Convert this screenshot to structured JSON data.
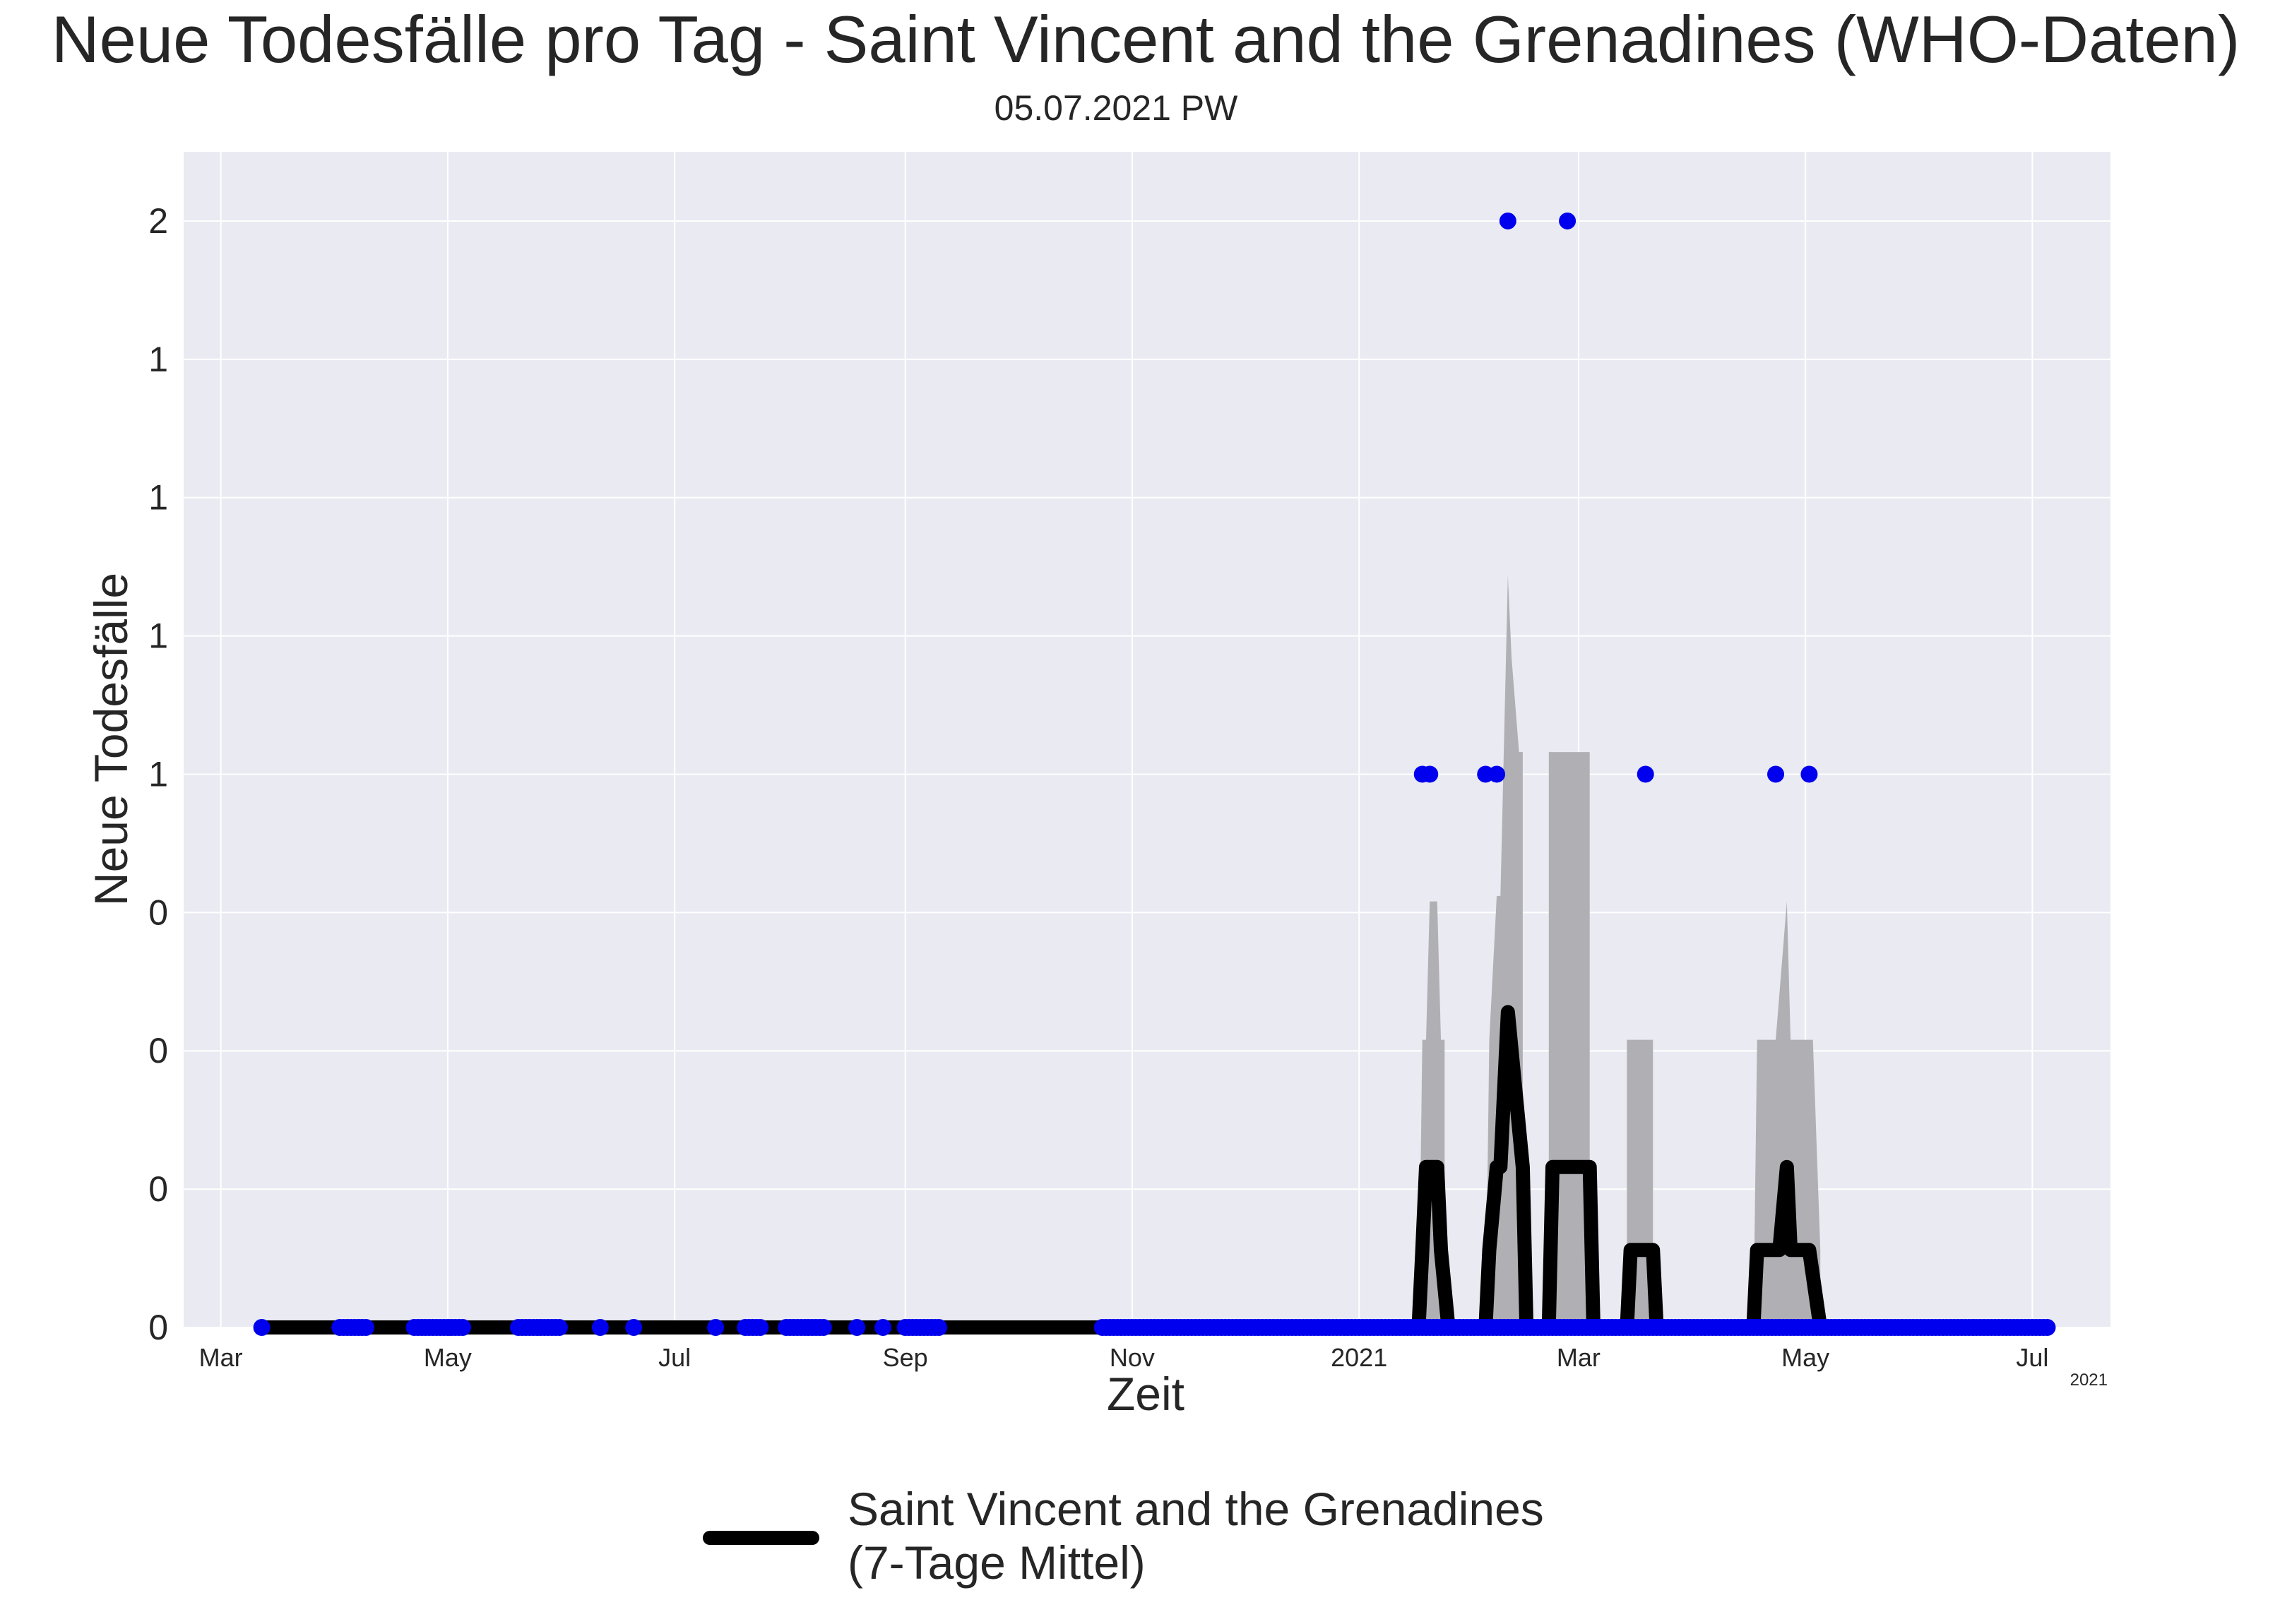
{
  "chart_data": {
    "type": "line",
    "title": "Neue Todesfälle pro Tag - Saint Vincent and the Grenadines (WHO-Daten)",
    "subtitle": "05.07.2021 PW",
    "xlabel": "Zeit",
    "ylabel": "Neue Todesfälle",
    "x_tick_labels": [
      "Mar",
      "May",
      "Jul",
      "Sep",
      "Nov",
      "2021",
      "Mar",
      "May",
      "Jul"
    ],
    "x_tick_dates": [
      "2020-03-01",
      "2020-05-01",
      "2020-07-01",
      "2020-09-01",
      "2020-11-01",
      "2021-01-01",
      "2021-03-01",
      "2021-05-01",
      "2021-07-01"
    ],
    "x_offset_label": "2021",
    "y_tick_labels": [
      "0",
      "0",
      "0",
      "0",
      "1",
      "1",
      "1",
      "1",
      "2"
    ],
    "y_tick_values": [
      0.0,
      0.25,
      0.5,
      0.75,
      1.0,
      1.25,
      1.5,
      1.75,
      2.0
    ],
    "xlim": [
      "2020-02-20",
      "2021-07-22"
    ],
    "ylim": [
      0,
      2.125
    ],
    "grid": true,
    "legend_position": "bottom-center",
    "colors": {
      "background": "#eaeaf2",
      "grid": "#ffffff",
      "points": "#0000ee",
      "line": "#000000",
      "band": "#b0b0b4"
    },
    "series": [
      {
        "name": "Saint Vincent and the Grenadines\n(7-Tage Mittel)",
        "kind": "line",
        "style": "thick black line",
        "points": [
          {
            "x": "2020-03-12",
            "y": 0
          },
          {
            "x": "2021-01-17",
            "y": 0
          },
          {
            "x": "2021-01-18",
            "y": 0.14
          },
          {
            "x": "2021-01-19",
            "y": 0.29
          },
          {
            "x": "2021-01-22",
            "y": 0.29
          },
          {
            "x": "2021-01-23",
            "y": 0.14
          },
          {
            "x": "2021-01-25",
            "y": 0
          },
          {
            "x": "2021-02-04",
            "y": 0
          },
          {
            "x": "2021-02-05",
            "y": 0.14
          },
          {
            "x": "2021-02-07",
            "y": 0.29
          },
          {
            "x": "2021-02-08",
            "y": 0.29
          },
          {
            "x": "2021-02-10",
            "y": 0.57
          },
          {
            "x": "2021-02-12",
            "y": 0.43
          },
          {
            "x": "2021-02-14",
            "y": 0.29
          },
          {
            "x": "2021-02-15",
            "y": 0
          },
          {
            "x": "2021-02-21",
            "y": 0
          },
          {
            "x": "2021-02-22",
            "y": 0.29
          },
          {
            "x": "2021-03-04",
            "y": 0.29
          },
          {
            "x": "2021-03-05",
            "y": 0
          },
          {
            "x": "2021-03-14",
            "y": 0
          },
          {
            "x": "2021-03-15",
            "y": 0.14
          },
          {
            "x": "2021-03-21",
            "y": 0.14
          },
          {
            "x": "2021-03-22",
            "y": 0
          },
          {
            "x": "2021-04-17",
            "y": 0
          },
          {
            "x": "2021-04-18",
            "y": 0.14
          },
          {
            "x": "2021-04-24",
            "y": 0.14
          },
          {
            "x": "2021-04-26",
            "y": 0.29
          },
          {
            "x": "2021-04-27",
            "y": 0.14
          },
          {
            "x": "2021-05-02",
            "y": 0.14
          },
          {
            "x": "2021-05-05",
            "y": 0
          },
          {
            "x": "2021-07-05",
            "y": 0
          }
        ]
      },
      {
        "kind": "band",
        "style": "grey shaded band",
        "points": [
          {
            "x": "2021-01-17",
            "y": 0
          },
          {
            "x": "2021-01-18",
            "y": 0.52
          },
          {
            "x": "2021-01-19",
            "y": 0.52
          },
          {
            "x": "2021-01-20",
            "y": 0.77
          },
          {
            "x": "2021-01-22",
            "y": 0.77
          },
          {
            "x": "2021-01-23",
            "y": 0.52
          },
          {
            "x": "2021-01-24",
            "y": 0.52
          },
          {
            "x": "2021-01-24",
            "y": 0
          },
          {
            "x": "2021-02-04",
            "y": 0
          },
          {
            "x": "2021-02-05",
            "y": 0.52
          },
          {
            "x": "2021-02-07",
            "y": 0.78
          },
          {
            "x": "2021-02-08",
            "y": 0.78
          },
          {
            "x": "2021-02-10",
            "y": 1.36
          },
          {
            "x": "2021-02-11",
            "y": 1.21
          },
          {
            "x": "2021-02-13",
            "y": 1.04
          },
          {
            "x": "2021-02-14",
            "y": 1.04
          },
          {
            "x": "2021-02-14",
            "y": 0
          },
          {
            "x": "2021-02-21",
            "y": 0
          },
          {
            "x": "2021-02-21",
            "y": 1.04
          },
          {
            "x": "2021-03-04",
            "y": 1.04
          },
          {
            "x": "2021-03-04",
            "y": 0
          },
          {
            "x": "2021-03-14",
            "y": 0
          },
          {
            "x": "2021-03-14",
            "y": 0.52
          },
          {
            "x": "2021-03-21",
            "y": 0.52
          },
          {
            "x": "2021-03-21",
            "y": 0
          },
          {
            "x": "2021-04-17",
            "y": 0
          },
          {
            "x": "2021-04-18",
            "y": 0.52
          },
          {
            "x": "2021-04-23",
            "y": 0.52
          },
          {
            "x": "2021-04-26",
            "y": 0.77
          },
          {
            "x": "2021-04-27",
            "y": 0.52
          },
          {
            "x": "2021-05-03",
            "y": 0.52
          },
          {
            "x": "2021-05-05",
            "y": 0.14
          },
          {
            "x": "2021-05-05",
            "y": 0
          }
        ]
      },
      {
        "kind": "scatter",
        "style": "blue dots",
        "points": [
          {
            "x": "2021-01-18",
            "y": 1
          },
          {
            "x": "2021-01-20",
            "y": 1
          },
          {
            "x": "2021-02-04",
            "y": 1
          },
          {
            "x": "2021-02-07",
            "y": 1
          },
          {
            "x": "2021-02-10",
            "y": 2
          },
          {
            "x": "2021-02-26",
            "y": 2
          },
          {
            "x": "2021-03-19",
            "y": 1
          },
          {
            "x": "2021-04-23",
            "y": 1
          },
          {
            "x": "2021-05-02",
            "y": 1
          }
        ],
        "zero_point_ranges": [
          [
            "2020-03-12",
            "2020-03-12"
          ],
          [
            "2020-04-02",
            "2020-04-09"
          ],
          [
            "2020-04-22",
            "2020-05-05"
          ],
          [
            "2020-05-20",
            "2020-05-31"
          ],
          [
            "2020-06-11",
            "2020-06-11"
          ],
          [
            "2020-06-20",
            "2020-06-20"
          ],
          [
            "2020-07-12",
            "2020-07-12"
          ],
          [
            "2020-07-20",
            "2020-07-24"
          ],
          [
            "2020-07-31",
            "2020-08-10"
          ],
          [
            "2020-08-19",
            "2020-08-19"
          ],
          [
            "2020-08-26",
            "2020-08-26"
          ],
          [
            "2020-09-01",
            "2020-09-10"
          ],
          [
            "2020-10-24",
            "2020-12-31"
          ],
          [
            "2021-01-01",
            "2021-07-05"
          ]
        ]
      }
    ]
  }
}
